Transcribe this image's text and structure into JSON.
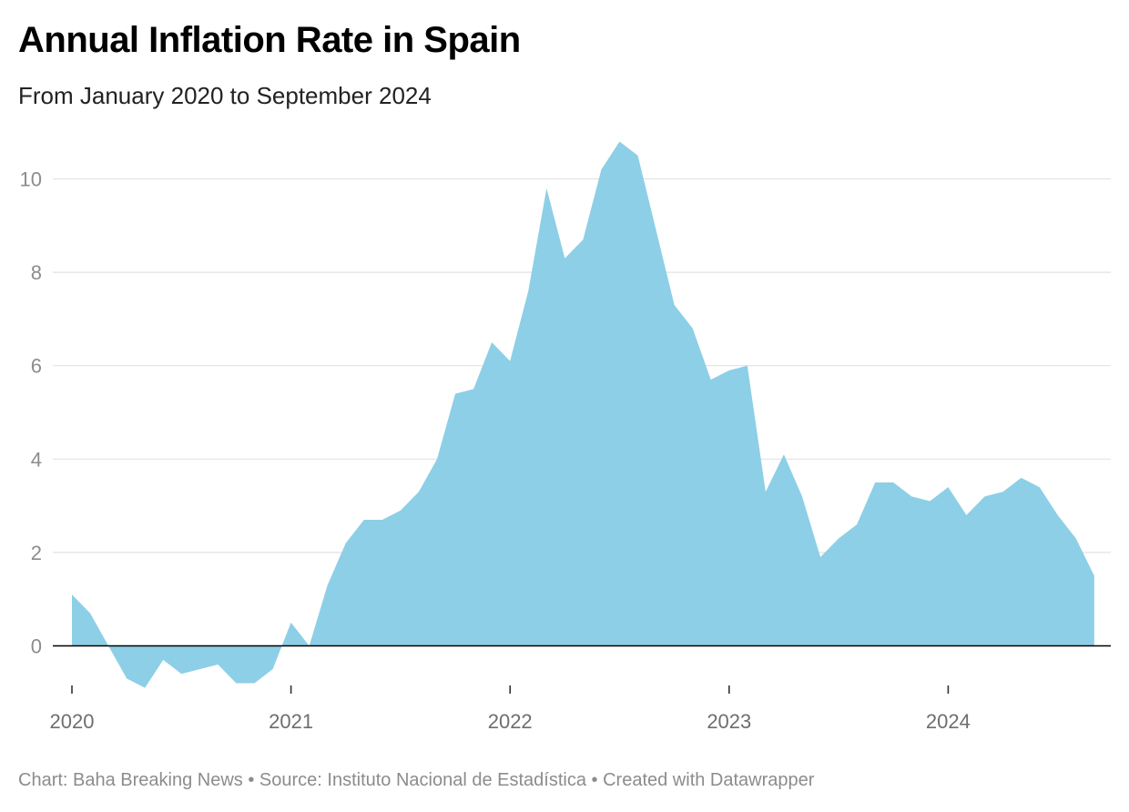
{
  "header": {
    "title": "Annual Inflation Rate in Spain",
    "subtitle": "From January 2020 to September 2024"
  },
  "footer": {
    "credit": "Chart: Baha Breaking News • Source: Instituto Nacional de Estadística • Created with Datawrapper"
  },
  "chart_data": {
    "type": "area",
    "title": "Annual Inflation Rate in Spain",
    "subtitle": "From January 2020 to September 2024",
    "xlabel": "",
    "ylabel": "",
    "x_start": "2020-01",
    "x_end": "2024-09",
    "x_tick_labels": [
      "2020",
      "2021",
      "2022",
      "2023",
      "2024"
    ],
    "y_tick_labels": [
      "0",
      "2",
      "4",
      "6",
      "8",
      "10"
    ],
    "ylim": [
      -1,
      11
    ],
    "grid": true,
    "fill_color": "#8dcfe6",
    "series": [
      {
        "values": [
          1.1,
          0.7,
          0.0,
          -0.7,
          -0.9,
          -0.3,
          -0.6,
          -0.5,
          -0.4,
          -0.8,
          -0.8,
          -0.5,
          0.5,
          0.0,
          1.3,
          2.2,
          2.7,
          2.7,
          2.9,
          3.3,
          4.0,
          5.4,
          5.5,
          6.5,
          6.1,
          7.6,
          9.8,
          8.3,
          8.7,
          10.2,
          10.8,
          10.5,
          8.9,
          7.3,
          6.8,
          5.7,
          5.9,
          6.0,
          3.3,
          4.1,
          3.2,
          1.9,
          2.3,
          2.6,
          3.5,
          3.5,
          3.2,
          3.1,
          3.4,
          2.8,
          3.2,
          3.3,
          3.6,
          3.4,
          2.8,
          2.3,
          1.5
        ]
      }
    ]
  }
}
